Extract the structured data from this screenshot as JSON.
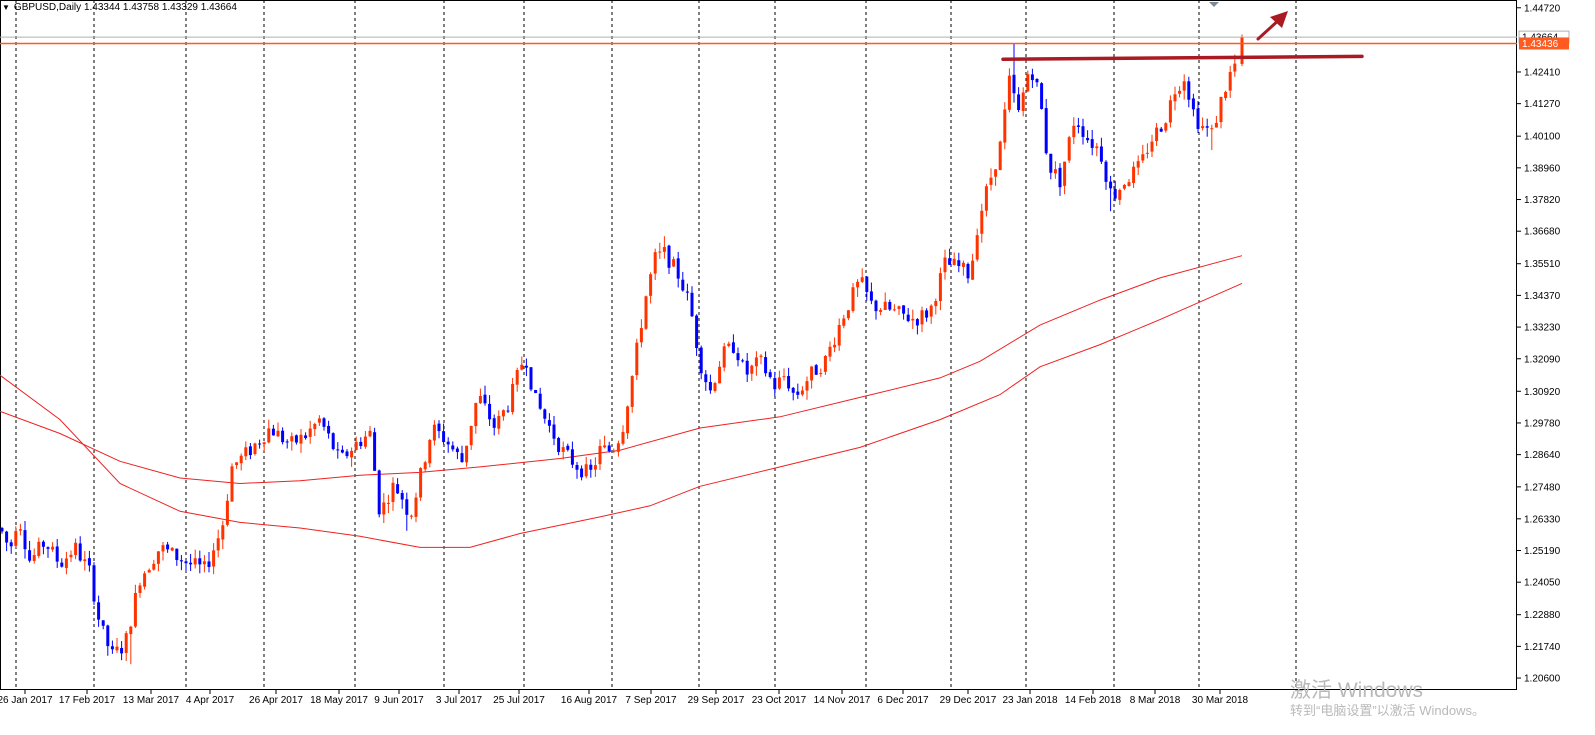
{
  "chart_data": {
    "type": "candlestick",
    "symbol": "GBPUSD,Daily",
    "ohlc": [
      "1.43344",
      "1.43758",
      "1.43329",
      "1.43664"
    ],
    "y_axis": {
      "ylim": [
        1.2017,
        1.45
      ],
      "tick_labels": [
        "1.44720",
        "1.43436",
        "1.42410",
        "1.41270",
        "1.40100",
        "1.38960",
        "1.37820",
        "1.36680",
        "1.35510",
        "1.34370",
        "1.33230",
        "1.32090",
        "1.30920",
        "1.29780",
        "1.28640",
        "1.27480",
        "1.26330",
        "1.25190",
        "1.24050",
        "1.22880",
        "1.21740",
        "1.20600"
      ],
      "highlighted_price": "1.43436",
      "current_price": "1.43664"
    },
    "x_axis": {
      "date_labels": [
        "26 Jan 2017",
        "17 Feb 2017",
        "13 Mar 2017",
        "4 Apr 2017",
        "26 Apr 2017",
        "18 May 2017",
        "9 Jun 2017",
        "3 Jul 2017",
        "25 Jul 2017",
        "16 Aug 2017",
        "7 Sep 2017",
        "29 Sep 2017",
        "23 Oct 2017",
        "14 Nov 2017",
        "6 Dec 2017",
        "29 Dec 2017",
        "23 Jan 2018",
        "14 Feb 2018",
        "8 Mar 2018",
        "30 Mar 2018"
      ]
    },
    "grid": "vertical-dotted",
    "up_color": "#ff3300",
    "down_color": "#0000ff",
    "ma_color": "#ee2222",
    "resistance_line_color": "#aa1a22",
    "horizontal_level_color": "#ff5a1f"
  },
  "watermark": {
    "line1": "激活 Windows",
    "line2": "转到“电脑设置”以激活 Windows。"
  }
}
